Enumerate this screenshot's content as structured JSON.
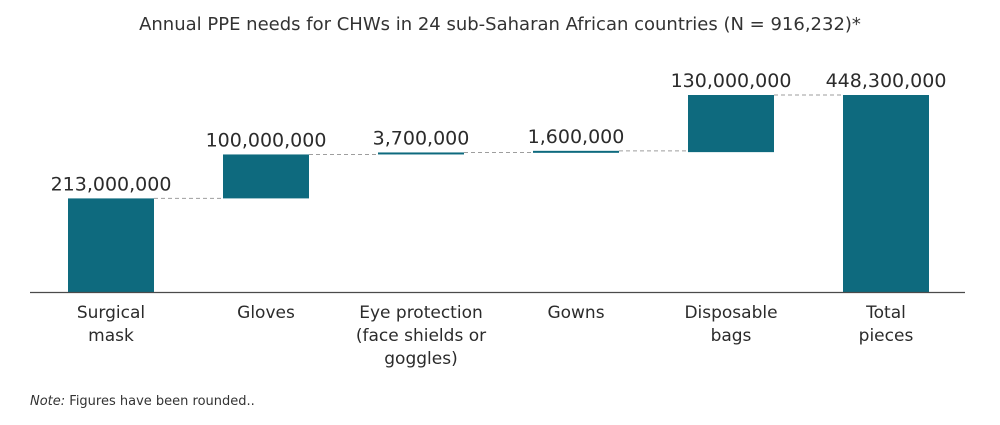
{
  "chart_data": {
    "type": "waterfall",
    "title": "Annual PPE needs for CHWs in 24 sub-Saharan African countries (N = 916,232)*",
    "categories": [
      [
        "Surgical",
        "mask"
      ],
      [
        "Gloves"
      ],
      [
        "Eye protection",
        "(face shields or",
        "goggles)"
      ],
      [
        "Gowns"
      ],
      [
        "Disposable",
        "bags"
      ],
      [
        "Total",
        "pieces"
      ]
    ],
    "values": [
      213000000,
      100000000,
      3700000,
      1600000,
      130000000,
      448300000
    ],
    "value_labels": [
      "213,000,000",
      "100,000,000",
      "3,700,000",
      "1,600,000",
      "130,000,000",
      "448,300,000"
    ],
    "is_total": [
      false,
      false,
      false,
      false,
      false,
      true
    ],
    "bar_color": "#0e6a7e",
    "connector_color": "#9e9e9e"
  },
  "note": {
    "prefix": "Note:",
    "text": " Figures have been rounded.."
  }
}
